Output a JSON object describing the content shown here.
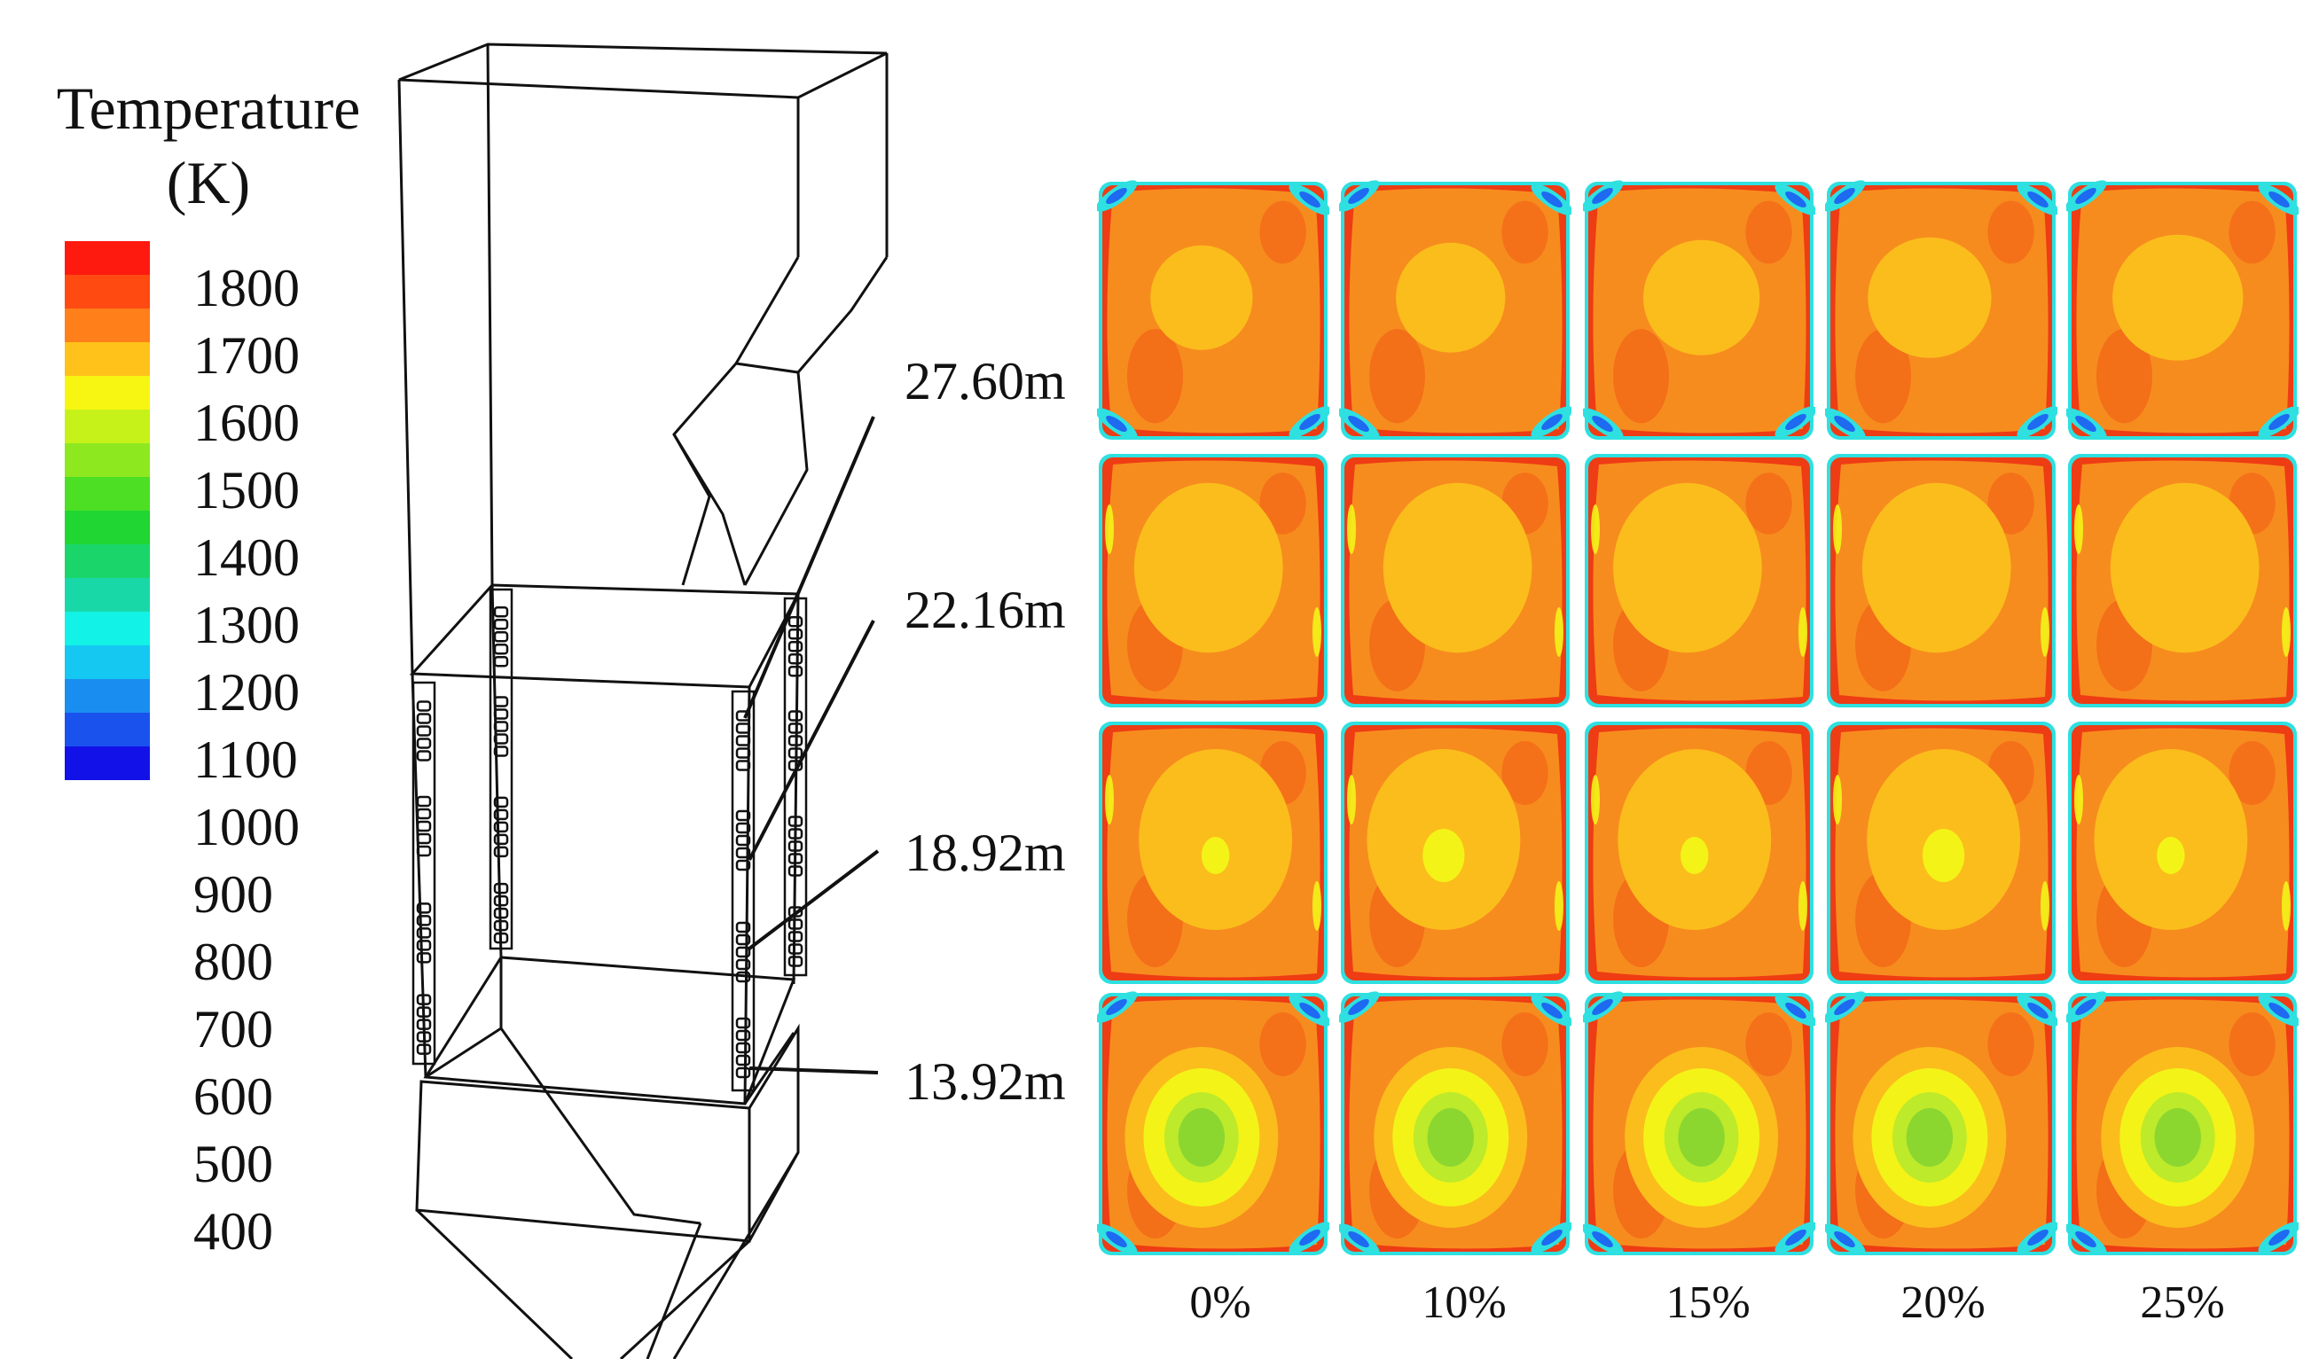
{
  "legend": {
    "title_line1": "Temperature",
    "title_line2": "(K)",
    "ticks": [
      "1800",
      "1700",
      "1600",
      "1500",
      "1400",
      "1300",
      "1200",
      "1100",
      "1000",
      "900",
      "800",
      "700",
      "600",
      "500",
      "400"
    ],
    "colors": [
      "#ff1a10",
      "#ff4a12",
      "#ff7f1a",
      "#ffc21a",
      "#f6f612",
      "#c6f21a",
      "#8ee820",
      "#4cdf24",
      "#20d632",
      "#1ad66a",
      "#19d8a8",
      "#12f2e6",
      "#14c8f2",
      "#1a8ef0",
      "#1a52ee",
      "#1212e8"
    ]
  },
  "heights": [
    "27.60m",
    "22.16m",
    "18.92m",
    "13.92m"
  ],
  "columns": [
    "0%",
    "10%",
    "15%",
    "20%",
    "25%"
  ],
  "palette": {
    "edge_red": "#ee3c14",
    "orange": "#f78c1e",
    "deep_orange": "#f26a18",
    "yellow_orange": "#fbbd1c",
    "yellow": "#f3f318",
    "lime": "#bdea2a",
    "green": "#8cd630",
    "cyan": "#2fe0e0",
    "blue": "#1e6af0"
  }
}
